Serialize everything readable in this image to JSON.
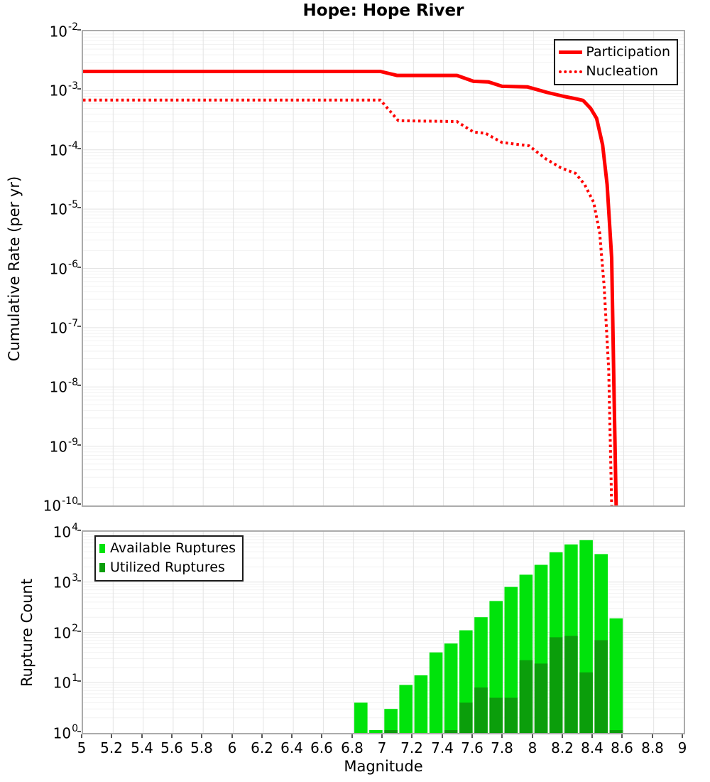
{
  "title": "Hope: Hope River",
  "colors": {
    "line_red": "#FF0000",
    "available_green": "#00E30B",
    "utilized_green": "#0B9E0B",
    "frame_gray": "#ABABAB",
    "grid_major": "#E3E3E3",
    "grid_minor": "#F2F2F2",
    "tick_mark": "#555555",
    "text": "#000000"
  },
  "chart_data": [
    {
      "type": "line",
      "title": "Hope: Hope River",
      "ylabel": "Cumulative Rate (per yr)",
      "xlabel": "Magnitude",
      "xlim": [
        5,
        9
      ],
      "ylim": [
        1e-10,
        0.01
      ],
      "y_scale": "log",
      "y_tick_exponents": [
        -2,
        -3,
        -4,
        -5,
        -6,
        -7,
        -8,
        -9,
        -10
      ],
      "grid": true,
      "legend_position": "top-right",
      "legend": [
        "Participation",
        "Nucleation"
      ],
      "series": [
        {
          "name": "Participation",
          "style": "solid",
          "color": "#FF0000",
          "points": [
            [
              5.0,
              0.0021
            ],
            [
              6.98,
              0.0021
            ],
            [
              7.09,
              0.0018
            ],
            [
              7.49,
              0.0018
            ],
            [
              7.6,
              0.00143
            ],
            [
              7.7,
              0.0014
            ],
            [
              7.79,
              0.00118
            ],
            [
              7.96,
              0.00115
            ],
            [
              8.09,
              0.00093
            ],
            [
              8.2,
              0.0008
            ],
            [
              8.29,
              0.00072
            ],
            [
              8.33,
              0.00068
            ],
            [
              8.38,
              0.0005
            ],
            [
              8.42,
              0.00034
            ],
            [
              8.46,
              0.00012
            ],
            [
              8.49,
              2.6e-05
            ],
            [
              8.52,
              1.5e-06
            ],
            [
              8.535,
              1e-08
            ],
            [
              8.55,
              1e-10
            ]
          ]
        },
        {
          "name": "Nucleation",
          "style": "dotted",
          "color": "#FF0000",
          "points": [
            [
              5.0,
              0.00069
            ],
            [
              6.98,
              0.00069
            ],
            [
              7.1,
              0.00031
            ],
            [
              7.49,
              0.0003
            ],
            [
              7.6,
              0.0002
            ],
            [
              7.68,
              0.00019
            ],
            [
              7.79,
              0.000133
            ],
            [
              7.97,
              0.000117
            ],
            [
              8.08,
              7.1e-05
            ],
            [
              8.18,
              5e-05
            ],
            [
              8.28,
              4e-05
            ],
            [
              8.34,
              2.6e-05
            ],
            [
              8.4,
              1.3e-05
            ],
            [
              8.44,
              4e-06
            ],
            [
              8.47,
              5e-07
            ],
            [
              8.5,
              2e-08
            ],
            [
              8.52,
              1e-10
            ]
          ]
        }
      ]
    },
    {
      "type": "bar",
      "ylabel": "Rupture Count",
      "xlabel": "Magnitude",
      "xlim": [
        5,
        9
      ],
      "ylim": [
        1,
        10000
      ],
      "y_scale": "log",
      "y_tick_exponents": [
        4,
        3,
        2,
        1,
        0
      ],
      "x_tick_labels": [
        "5",
        "5.2",
        "5.4",
        "5.6",
        "5.8",
        "6",
        "6.2",
        "6.4",
        "6.6",
        "6.8",
        "7",
        "7.2",
        "7.4",
        "7.6",
        "7.8",
        "8",
        "8.2",
        "8.4",
        "8.6",
        "8.8",
        "9"
      ],
      "grid": true,
      "legend_position": "top-left",
      "bin_start": 6.8,
      "bin_width": 0.1,
      "series": [
        {
          "name": "Available Ruptures",
          "color": "#00E30B",
          "values": [
            4,
            1,
            3,
            9,
            14,
            40,
            60,
            110,
            200,
            420,
            800,
            1400,
            2200,
            3900,
            5600,
            6800,
            3600,
            190
          ]
        },
        {
          "name": "Utilized Ruptures",
          "color": "#0B9E0B",
          "values": [
            0,
            0,
            1,
            0,
            0,
            0,
            1,
            4,
            8,
            5,
            5,
            28,
            24,
            80,
            85,
            16,
            70,
            1
          ]
        }
      ]
    }
  ]
}
